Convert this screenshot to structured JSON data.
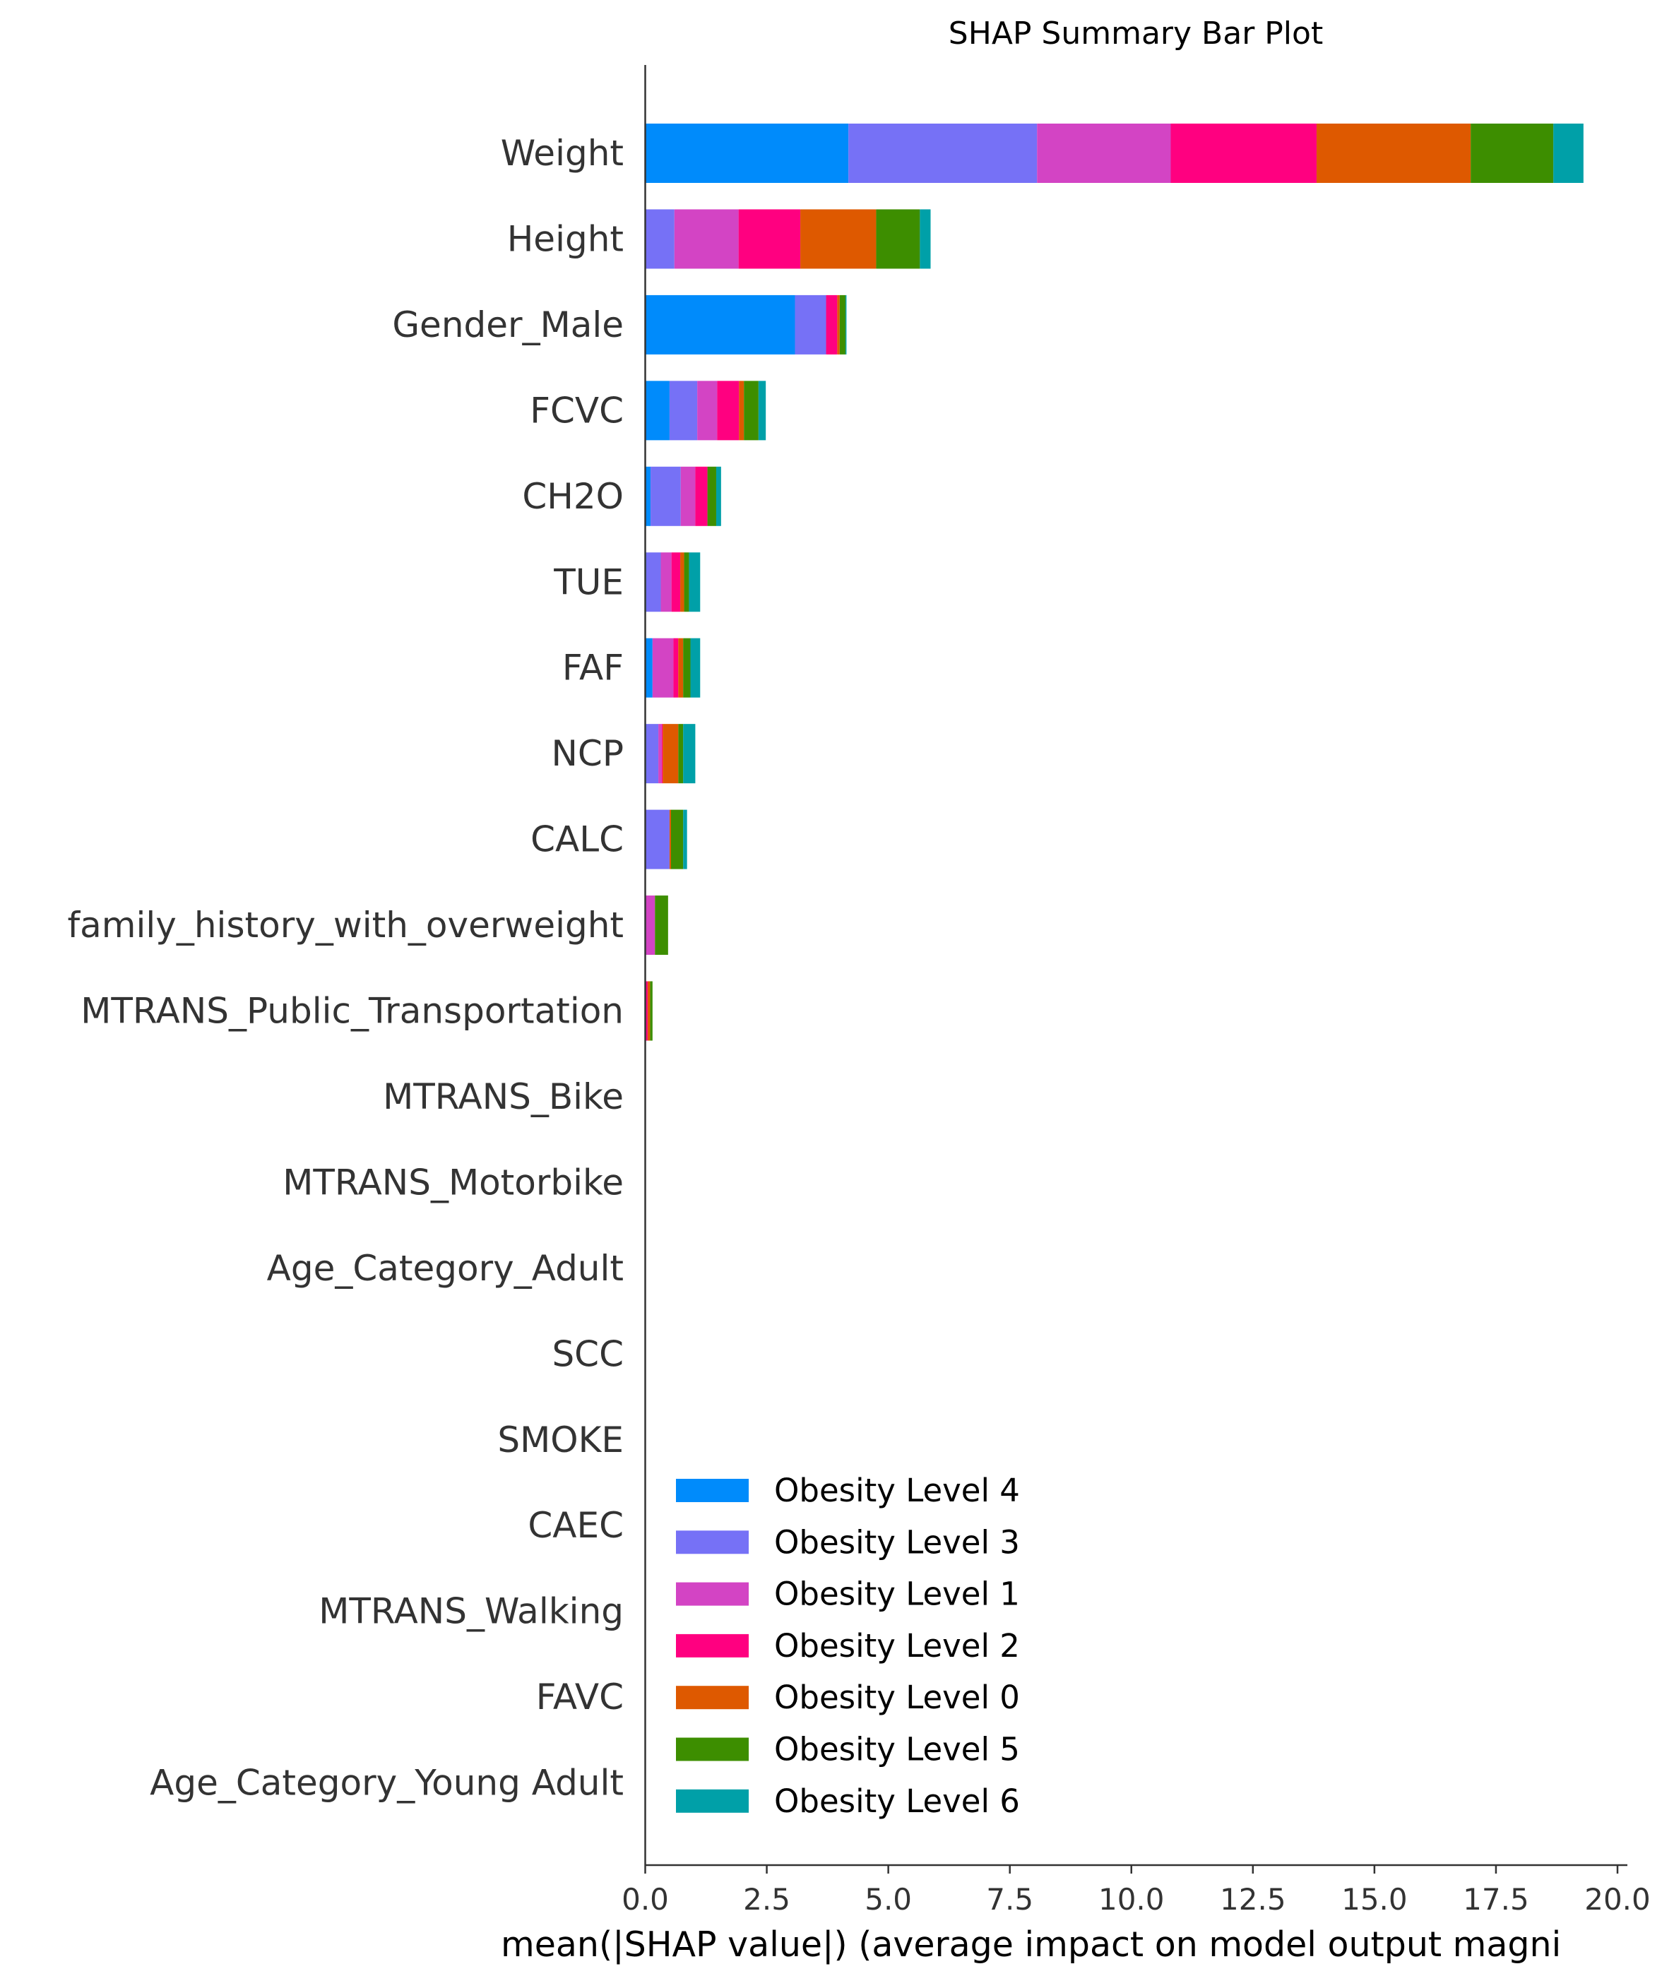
{
  "chart_data": {
    "type": "bar",
    "orientation": "horizontal",
    "stacked": true,
    "title": "SHAP Summary Bar Plot",
    "xlabel": "mean(|SHAP value|) (average impact on model output magni",
    "ylabel": "",
    "xlim": [
      0,
      20.2
    ],
    "xticks": [
      {
        "value": 0,
        "label": "0.0"
      },
      {
        "value": 2.5,
        "label": "2.5"
      },
      {
        "value": 5,
        "label": "5.0"
      },
      {
        "value": 7.5,
        "label": "7.5"
      },
      {
        "value": 10,
        "label": "10.0"
      },
      {
        "value": 12.5,
        "label": "12.5"
      },
      {
        "value": 15,
        "label": "15.0"
      },
      {
        "value": 17.5,
        "label": "17.5"
      },
      {
        "value": 20,
        "label": "20.0"
      }
    ],
    "grid": false,
    "legend_position": "lower-center",
    "categories": [
      "Weight",
      "Height",
      "Gender_Male",
      "FCVC",
      "CH2O",
      "TUE",
      "FAF",
      "NCP",
      "CALC",
      "family_history_with_overweight",
      "MTRANS_Public_Transportation",
      "MTRANS_Bike",
      "MTRANS_Motorbike",
      "Age_Category_Adult",
      "SCC",
      "SMOKE",
      "CAEC",
      "MTRANS_Walking",
      "FAVC",
      "Age_Category_Young Adult"
    ],
    "series": [
      {
        "name": "Obesity Level 4",
        "color": "#008bfb",
        "values": [
          4.18,
          0.0,
          3.08,
          0.5,
          0.11,
          0.02,
          0.15,
          0.02,
          0.0,
          0.0,
          0.0,
          0.0,
          0.0,
          0.0,
          0.0,
          0.0,
          0.0,
          0.0,
          0.0,
          0.0
        ]
      },
      {
        "name": "Obesity Level 3",
        "color": "#7671f6",
        "values": [
          3.88,
          0.6,
          0.64,
          0.57,
          0.62,
          0.3,
          0.0,
          0.25,
          0.5,
          0.0,
          0.0,
          0.0,
          0.0,
          0.0,
          0.0,
          0.0,
          0.0,
          0.0,
          0.0,
          0.0
        ]
      },
      {
        "name": "Obesity Level 1",
        "color": "#d344c4",
        "values": [
          2.75,
          1.32,
          0.0,
          0.41,
          0.3,
          0.22,
          0.43,
          0.07,
          0.0,
          0.2,
          0.0,
          0.0,
          0.0,
          0.0,
          0.0,
          0.0,
          0.0,
          0.0,
          0.0,
          0.0
        ]
      },
      {
        "name": "Obesity Level 2",
        "color": "#ff0080",
        "values": [
          3.0,
          1.27,
          0.23,
          0.45,
          0.25,
          0.18,
          0.1,
          0.02,
          0.0,
          0.0,
          0.05,
          0.0,
          0.0,
          0.0,
          0.0,
          0.0,
          0.0,
          0.0,
          0.0,
          0.0
        ]
      },
      {
        "name": "Obesity Level 0",
        "color": "#de5900",
        "values": [
          3.17,
          1.56,
          0.05,
          0.1,
          0.0,
          0.08,
          0.1,
          0.32,
          0.03,
          0.0,
          0.05,
          0.0,
          0.0,
          0.0,
          0.0,
          0.0,
          0.0,
          0.0,
          0.0,
          0.0
        ]
      },
      {
        "name": "Obesity Level 5",
        "color": "#3d8e00",
        "values": [
          1.7,
          0.9,
          0.12,
          0.3,
          0.18,
          0.1,
          0.15,
          0.1,
          0.25,
          0.27,
          0.05,
          0.0,
          0.0,
          0.0,
          0.0,
          0.0,
          0.0,
          0.0,
          0.0,
          0.0
        ]
      },
      {
        "name": "Obesity Level 6",
        "color": "#00a0a8",
        "values": [
          0.62,
          0.22,
          0.02,
          0.15,
          0.1,
          0.23,
          0.2,
          0.25,
          0.08,
          0.0,
          0.0,
          0.0,
          0.0,
          0.0,
          0.0,
          0.0,
          0.0,
          0.0,
          0.0,
          0.0
        ]
      }
    ]
  }
}
